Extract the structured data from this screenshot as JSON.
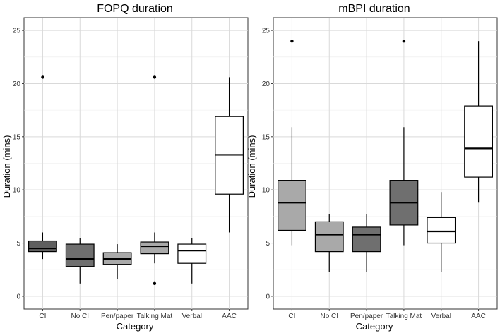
{
  "chart_data": [
    {
      "type": "boxplot",
      "title": "FOPQ duration",
      "xlabel": "Category",
      "ylabel": "Duration (mins)",
      "ylim": [
        -1.2,
        26.2
      ],
      "yticks": [
        0,
        5,
        10,
        15,
        20,
        25
      ],
      "grid": true,
      "categories": [
        "CI",
        "No CI",
        "Pen/paper",
        "Talking Mat",
        "Verbal",
        "AAC"
      ],
      "boxes": [
        {
          "category": "CI",
          "whisker_low": 3.5,
          "q1": 4.2,
          "median": 4.5,
          "q3": 5.2,
          "whisker_high": 6.0,
          "outliers": [
            20.6
          ],
          "fill": "#5f5f5f"
        },
        {
          "category": "No CI",
          "whisker_low": 1.2,
          "q1": 2.8,
          "median": 3.5,
          "q3": 4.9,
          "whisker_high": 5.5,
          "outliers": [],
          "fill": "#6f6f6f"
        },
        {
          "category": "Pen/paper",
          "whisker_low": 1.6,
          "q1": 3.0,
          "median": 3.5,
          "q3": 4.1,
          "whisker_high": 4.9,
          "outliers": [],
          "fill": "#a9a9a9"
        },
        {
          "category": "Talking Mat",
          "whisker_low": 3.1,
          "q1": 4.0,
          "median": 4.7,
          "q3": 5.1,
          "whisker_high": 6.0,
          "outliers": [
            20.6,
            1.2
          ],
          "fill": "#a9a9a9"
        },
        {
          "category": "Verbal",
          "whisker_low": 1.2,
          "q1": 3.1,
          "median": 4.3,
          "q3": 4.9,
          "whisker_high": 5.5,
          "outliers": [],
          "fill": "#ffffff"
        },
        {
          "category": "AAC",
          "whisker_low": 6.0,
          "q1": 9.6,
          "median": 13.3,
          "q3": 16.9,
          "whisker_high": 20.6,
          "outliers": [],
          "fill": "#ffffff"
        }
      ]
    },
    {
      "type": "boxplot",
      "title": "mBPI duration",
      "xlabel": "Category",
      "ylabel": "Duration (mins)",
      "ylim": [
        -1.2,
        26.2
      ],
      "yticks": [
        0,
        5,
        10,
        15,
        20,
        25
      ],
      "grid": true,
      "categories": [
        "CI",
        "No CI",
        "Pen/paper",
        "Talking Mat",
        "Verbal",
        "AAC"
      ],
      "boxes": [
        {
          "category": "CI",
          "whisker_low": 4.8,
          "q1": 6.2,
          "median": 8.8,
          "q3": 10.9,
          "whisker_high": 15.9,
          "outliers": [
            24.0
          ],
          "fill": "#a9a9a9"
        },
        {
          "category": "No CI",
          "whisker_low": 2.3,
          "q1": 4.2,
          "median": 5.8,
          "q3": 7.0,
          "whisker_high": 7.7,
          "outliers": [],
          "fill": "#a9a9a9"
        },
        {
          "category": "Pen/paper",
          "whisker_low": 2.3,
          "q1": 4.2,
          "median": 5.8,
          "q3": 6.5,
          "whisker_high": 7.7,
          "outliers": [],
          "fill": "#6f6f6f"
        },
        {
          "category": "Talking Mat",
          "whisker_low": 4.8,
          "q1": 6.7,
          "median": 8.8,
          "q3": 10.9,
          "whisker_high": 15.9,
          "outliers": [
            24.0
          ],
          "fill": "#6f6f6f"
        },
        {
          "category": "Verbal",
          "whisker_low": 2.3,
          "q1": 5.0,
          "median": 6.1,
          "q3": 7.4,
          "whisker_high": 9.8,
          "outliers": [],
          "fill": "#ffffff"
        },
        {
          "category": "AAC",
          "whisker_low": 8.8,
          "q1": 11.2,
          "median": 13.9,
          "q3": 17.9,
          "whisker_high": 24.0,
          "outliers": [],
          "fill": "#ffffff"
        }
      ]
    }
  ]
}
